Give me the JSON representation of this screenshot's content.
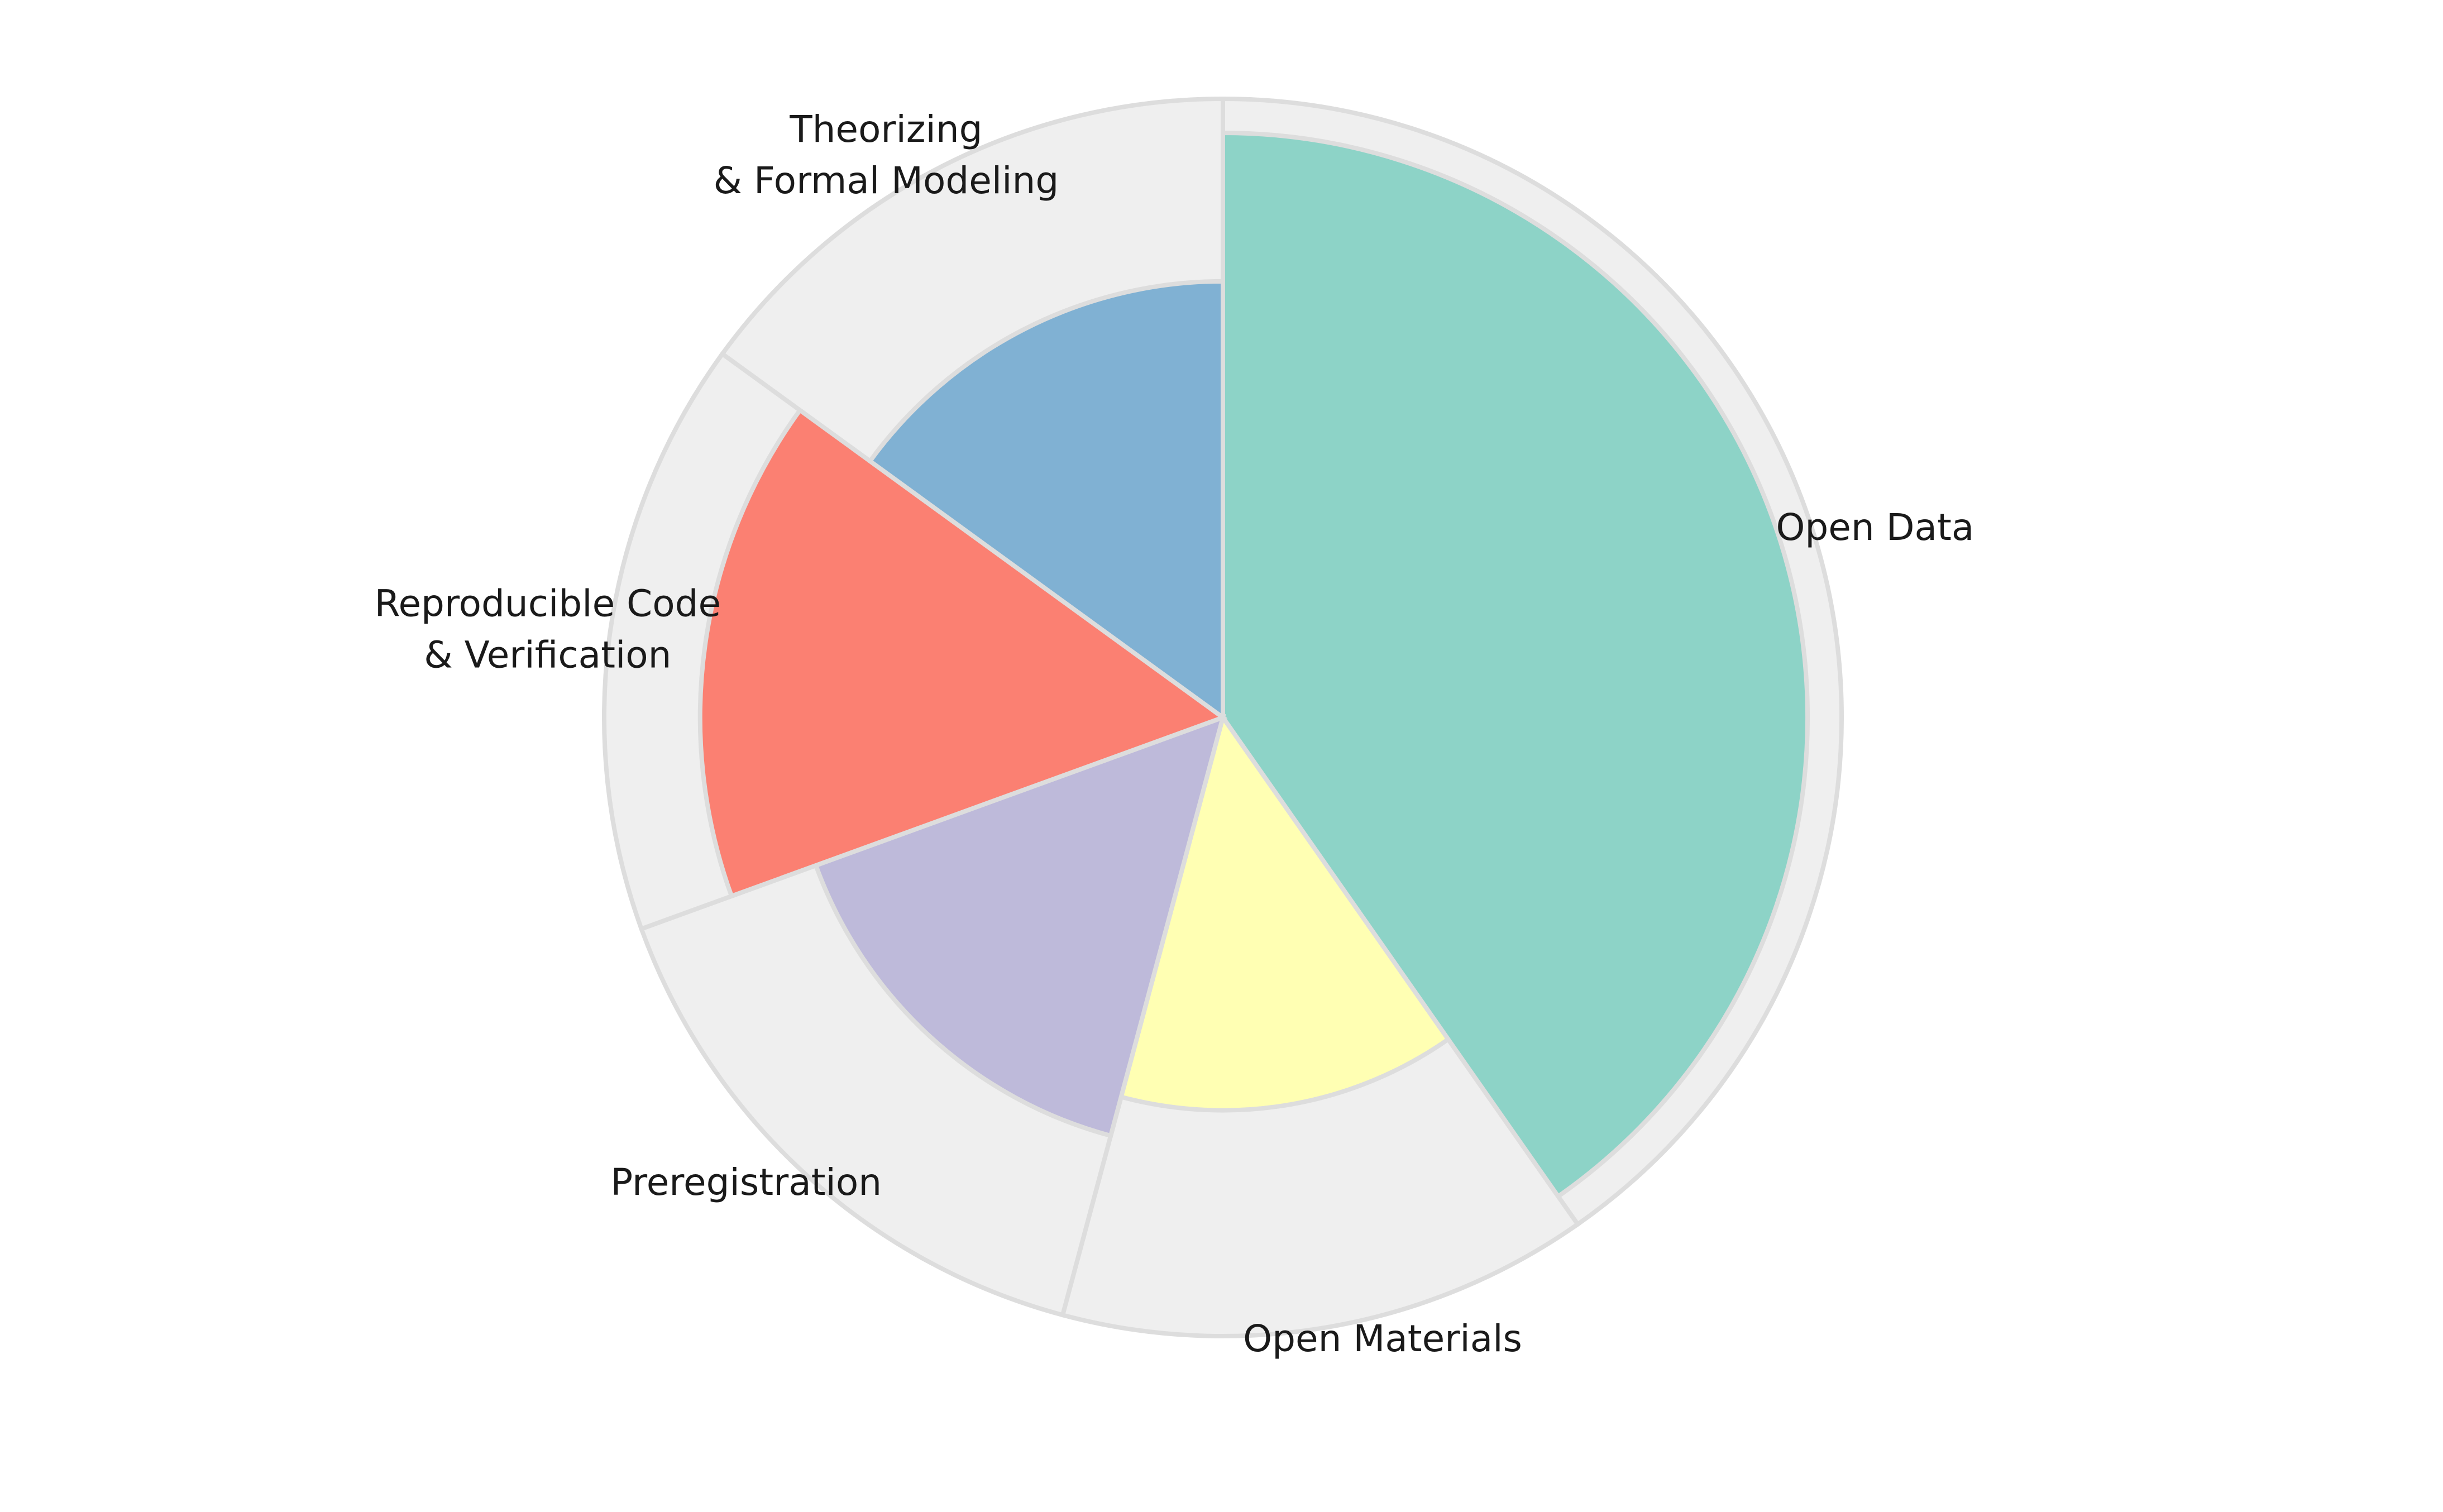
{
  "chart_data": {
    "type": "pie",
    "subtype": "polar-area",
    "title": "",
    "total_radius": 100,
    "background_color": "#efefef",
    "edge_color": "#dddddd",
    "slices": [
      {
        "label_lines": [
          "Open Data"
        ],
        "share": 0.4028,
        "radius_pct": 94.5,
        "color": "#8dd3c7"
      },
      {
        "label_lines": [
          "Open Materials"
        ],
        "share": 0.1389,
        "radius_pct": 63.5,
        "color": "#ffffb3"
      },
      {
        "label_lines": [
          "Preregistration"
        ],
        "share": 0.1528,
        "radius_pct": 70,
        "color": "#bebada"
      },
      {
        "label_lines": [
          "Reproducible Code",
          "& Verification"
        ],
        "share": 0.1555,
        "radius_pct": 84.5,
        "color": "#fb8072"
      },
      {
        "label_lines": [
          "Theorizing",
          "& Formal Modeling"
        ],
        "share": 0.15,
        "radius_pct": 70.5,
        "color": "#80b1d3"
      }
    ]
  }
}
